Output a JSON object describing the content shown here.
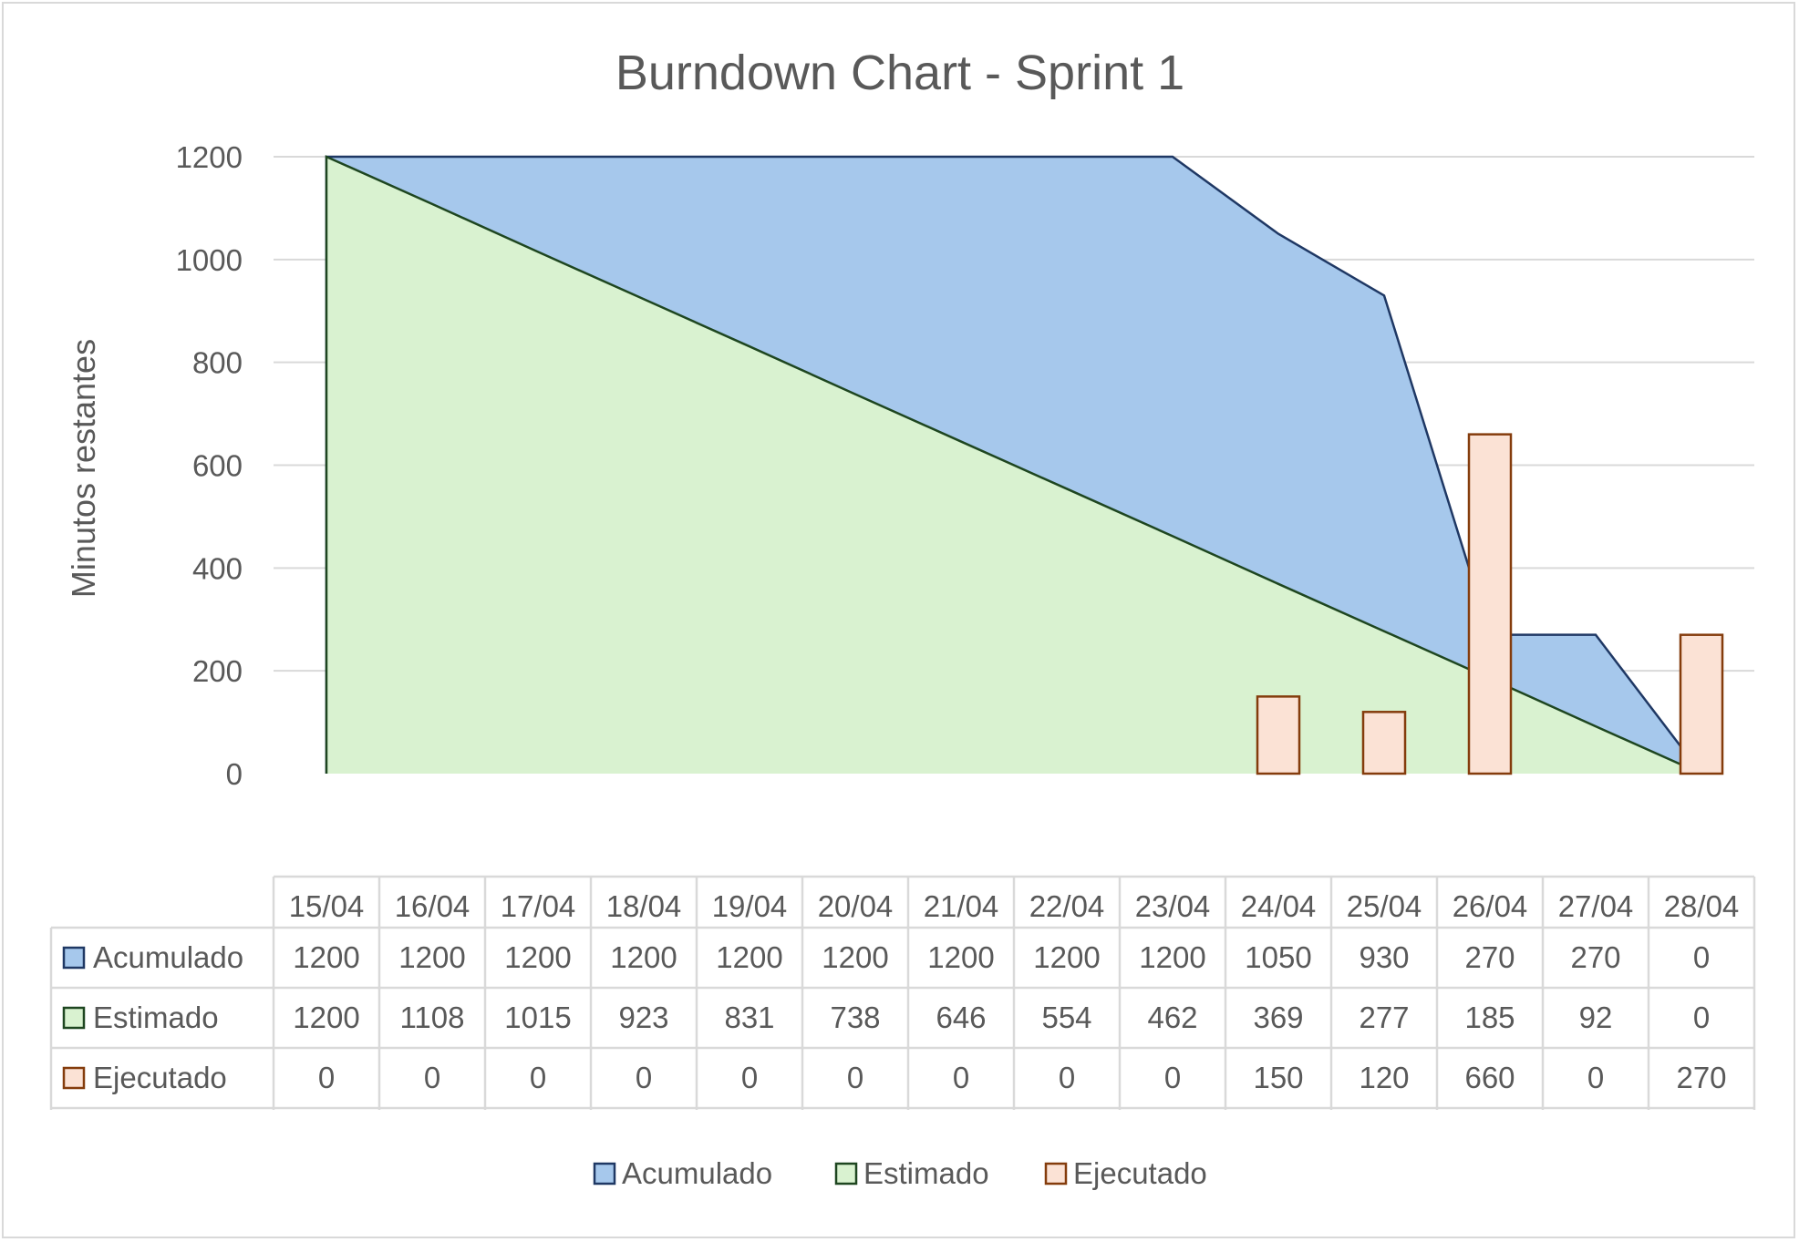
{
  "chart_data": {
    "type": "area",
    "title": "Burndown Chart - Sprint 1",
    "xlabel": "",
    "ylabel": "Minutos restantes",
    "ylim": [
      0,
      1200
    ],
    "yticks": [
      0,
      200,
      400,
      600,
      800,
      1000,
      1200
    ],
    "grid": true,
    "legend_position": "bottom",
    "categories": [
      "15/04",
      "16/04",
      "17/04",
      "18/04",
      "19/04",
      "20/04",
      "21/04",
      "22/04",
      "23/04",
      "24/04",
      "25/04",
      "26/04",
      "27/04",
      "28/04"
    ],
    "series": [
      {
        "name": "Acumulado",
        "type": "area",
        "fill": "#a6c8ec",
        "stroke": "#1f3864",
        "values": [
          1200,
          1200,
          1200,
          1200,
          1200,
          1200,
          1200,
          1200,
          1200,
          1050,
          930,
          270,
          270,
          0
        ]
      },
      {
        "name": "Estimado",
        "type": "area",
        "fill": "#d9f2d0",
        "stroke": "#1e4620",
        "values": [
          1200,
          1108,
          1015,
          923,
          831,
          738,
          646,
          554,
          462,
          369,
          277,
          185,
          92,
          0
        ]
      },
      {
        "name": "Ejecutado",
        "type": "bar",
        "fill": "#fbe2d5",
        "stroke": "#843c0c",
        "values": [
          0,
          0,
          0,
          0,
          0,
          0,
          0,
          0,
          0,
          150,
          120,
          660,
          0,
          270
        ]
      }
    ]
  }
}
